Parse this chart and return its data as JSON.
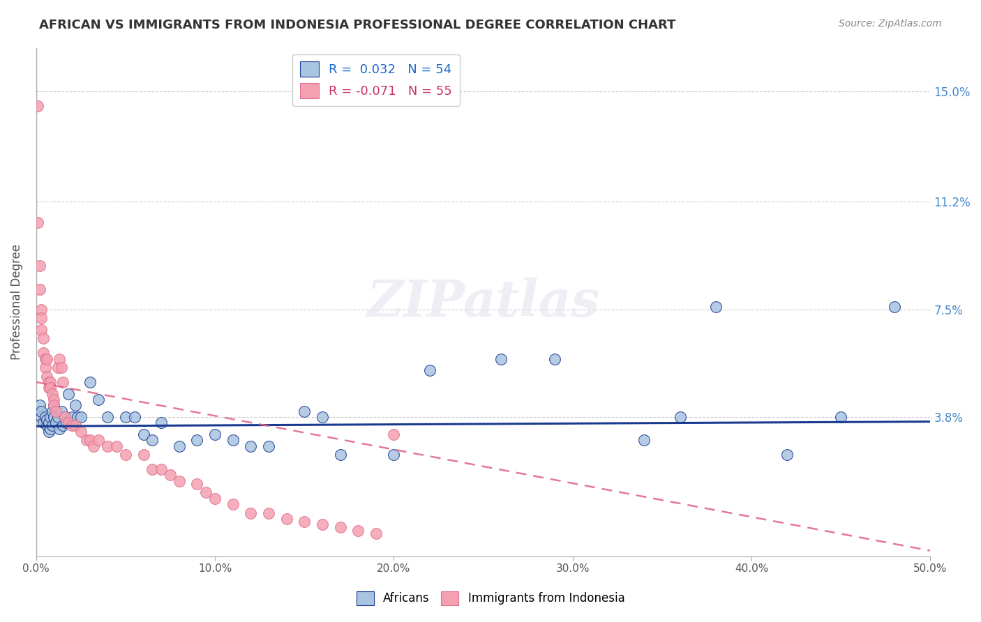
{
  "title": "AFRICAN VS IMMIGRANTS FROM INDONESIA PROFESSIONAL DEGREE CORRELATION CHART",
  "source": "Source: ZipAtlas.com",
  "ylabel": "Professional Degree",
  "ytick_labels": [
    "3.8%",
    "7.5%",
    "11.2%",
    "15.0%"
  ],
  "ytick_values": [
    0.038,
    0.075,
    0.112,
    0.15
  ],
  "xlim": [
    0.0,
    0.5
  ],
  "ylim": [
    -0.01,
    0.165
  ],
  "r_african": 0.032,
  "n_african": 54,
  "r_indonesia": -0.071,
  "n_indonesia": 55,
  "color_african": "#a8c4e0",
  "color_indonesia": "#f4a0b0",
  "line_color_african": "#1a3a8f",
  "line_color_indonesia": "#e06080",
  "legend_text_african": "#1a6acc",
  "legend_text_indonesia": "#cc3366",
  "watermark_color": "#e8e8f0",
  "watermark": "ZIPatlas",
  "african_x": [
    0.002,
    0.003,
    0.003,
    0.004,
    0.005,
    0.006,
    0.006,
    0.007,
    0.007,
    0.008,
    0.008,
    0.009,
    0.009,
    0.01,
    0.01,
    0.011,
    0.012,
    0.013,
    0.014,
    0.015,
    0.016,
    0.017,
    0.018,
    0.02,
    0.022,
    0.023,
    0.025,
    0.03,
    0.035,
    0.04,
    0.05,
    0.055,
    0.06,
    0.065,
    0.07,
    0.08,
    0.09,
    0.1,
    0.11,
    0.12,
    0.13,
    0.15,
    0.16,
    0.17,
    0.2,
    0.22,
    0.26,
    0.29,
    0.34,
    0.36,
    0.38,
    0.42,
    0.45,
    0.48
  ],
  "african_y": [
    0.042,
    0.038,
    0.04,
    0.036,
    0.038,
    0.035,
    0.037,
    0.033,
    0.036,
    0.034,
    0.038,
    0.035,
    0.04,
    0.038,
    0.042,
    0.036,
    0.038,
    0.034,
    0.04,
    0.035,
    0.038,
    0.036,
    0.046,
    0.038,
    0.042,
    0.038,
    0.038,
    0.05,
    0.044,
    0.038,
    0.038,
    0.038,
    0.032,
    0.03,
    0.036,
    0.028,
    0.03,
    0.032,
    0.03,
    0.028,
    0.028,
    0.04,
    0.038,
    0.025,
    0.025,
    0.054,
    0.058,
    0.058,
    0.03,
    0.038,
    0.076,
    0.025,
    0.038,
    0.076
  ],
  "indonesia_x": [
    0.001,
    0.001,
    0.002,
    0.002,
    0.003,
    0.003,
    0.003,
    0.004,
    0.004,
    0.005,
    0.005,
    0.006,
    0.006,
    0.007,
    0.007,
    0.008,
    0.008,
    0.009,
    0.01,
    0.01,
    0.011,
    0.012,
    0.013,
    0.014,
    0.015,
    0.016,
    0.018,
    0.02,
    0.022,
    0.025,
    0.028,
    0.03,
    0.032,
    0.035,
    0.04,
    0.045,
    0.05,
    0.06,
    0.065,
    0.07,
    0.075,
    0.08,
    0.09,
    0.095,
    0.1,
    0.11,
    0.12,
    0.13,
    0.14,
    0.15,
    0.16,
    0.17,
    0.18,
    0.19,
    0.2
  ],
  "indonesia_y": [
    0.145,
    0.105,
    0.09,
    0.082,
    0.075,
    0.068,
    0.072,
    0.065,
    0.06,
    0.058,
    0.055,
    0.052,
    0.058,
    0.048,
    0.05,
    0.05,
    0.048,
    0.046,
    0.044,
    0.042,
    0.04,
    0.055,
    0.058,
    0.055,
    0.05,
    0.038,
    0.036,
    0.035,
    0.035,
    0.033,
    0.03,
    0.03,
    0.028,
    0.03,
    0.028,
    0.028,
    0.025,
    0.025,
    0.02,
    0.02,
    0.018,
    0.016,
    0.015,
    0.012,
    0.01,
    0.008,
    0.005,
    0.005,
    0.003,
    0.002,
    0.001,
    0.0,
    -0.001,
    -0.002,
    0.032
  ],
  "af_line_x": [
    0.0,
    0.5
  ],
  "af_line_y": [
    0.0348,
    0.0364
  ],
  "indo_line_x": [
    0.0,
    0.5
  ],
  "indo_line_y": [
    0.05,
    -0.008
  ]
}
